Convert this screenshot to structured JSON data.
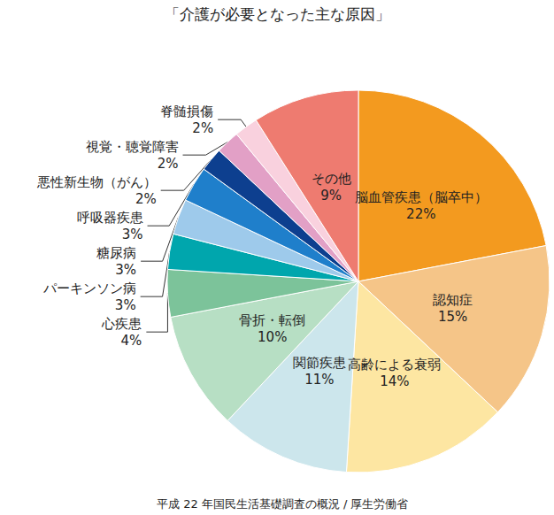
{
  "chart_data": {
    "type": "pie",
    "title": "「介護が必要となった主な原因」",
    "note": "平成 22 年国民生活基礎調査の概況 / 厚生労働省",
    "categories": [
      "脳血管疾患（脳卒中）",
      "認知症",
      "高齢による衰弱",
      "関節疾患",
      "骨折・転倒",
      "心疾患",
      "パーキンソン病",
      "糖尿病",
      "呼吸器疾患",
      "悪性新生物（がん）",
      "視覚・聴覚障害",
      "脊髄損傷",
      "その他"
    ],
    "values": [
      22,
      15,
      14,
      11,
      10,
      4,
      3,
      3,
      3,
      2,
      2,
      2,
      9
    ],
    "value_labels": [
      "22%",
      "15%",
      "14%",
      "11%",
      "10%",
      "4%",
      "3%",
      "3%",
      "3%",
      "2%",
      "2%",
      "2%",
      "9%"
    ],
    "colors": [
      "#f39a1f",
      "#f5c588",
      "#fde6a2",
      "#cce6ec",
      "#b7dfc4",
      "#7cc39a",
      "#00a6ad",
      "#9ecaeb",
      "#1f7fcb",
      "#0d3f8f",
      "#e2a0c6",
      "#f9d1de",
      "#ee7b70"
    ],
    "data_labels": true
  }
}
